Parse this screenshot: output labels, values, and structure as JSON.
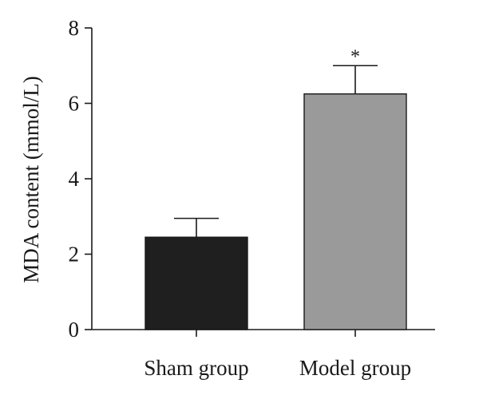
{
  "chart_data": {
    "type": "bar",
    "categories": [
      "Sham group",
      "Model group"
    ],
    "values": [
      2.45,
      6.25
    ],
    "errors": [
      0.5,
      0.75
    ],
    "bar_colors": [
      "#1f1f1f",
      "#9a9a9a"
    ],
    "annotations": [
      "",
      "*"
    ],
    "title": "",
    "xlabel": "",
    "ylabel": "MDA content (mmol/L)",
    "ylim": [
      0,
      8
    ],
    "yticks": [
      "0",
      "2",
      "4",
      "6",
      "8"
    ],
    "grid": false,
    "legend": "none"
  }
}
